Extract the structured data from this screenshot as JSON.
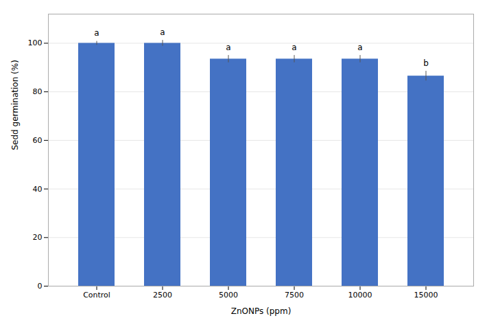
{
  "chart_data": {
    "type": "bar",
    "categories": [
      "Control",
      "2500",
      "5000",
      "7500",
      "10000",
      "15000"
    ],
    "values": [
      100.0,
      100.0,
      93.5,
      93.5,
      93.5,
      86.5
    ],
    "errors": [
      0.8,
      1.2,
      1.5,
      1.5,
      1.5,
      2.0
    ],
    "letters": [
      "a",
      "a",
      "a",
      "a",
      "a",
      "b"
    ],
    "color": "#4472C4",
    "xlabel": "ZnONPs (ppm)",
    "ylabel": "Sedd germination (%)",
    "ylim": [
      0,
      112
    ],
    "yticks": [
      0,
      20,
      40,
      60,
      80,
      100
    ],
    "grid": true
  }
}
